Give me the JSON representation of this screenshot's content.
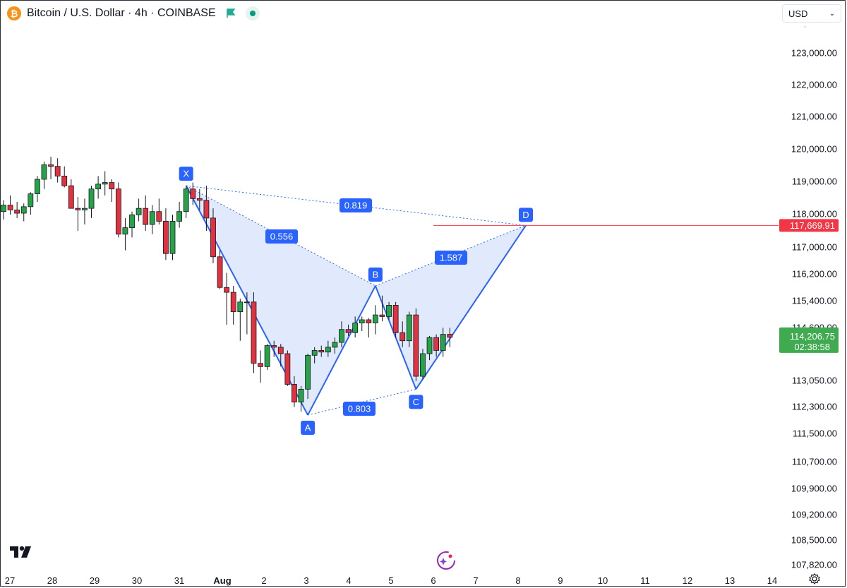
{
  "header": {
    "symbol_title": "Bitcoin / U.S. Dollar · 4h · COINBASE",
    "coin_icon": "bitcoin-icon",
    "flag_icon": "flag-icon",
    "status_icon": "market-open-dot-icon"
  },
  "currency_select": {
    "value": "USD"
  },
  "colors": {
    "up": "#26a247",
    "down": "#e0323f",
    "pattern_line": "#2962ff",
    "pattern_fill": "#dbe6fb",
    "label_bg": "#2962ff",
    "target_line": "#f23645",
    "last_price_bg": "#3faa4f"
  },
  "price_axis": {
    "labels": [
      "123,000.00",
      "122,000.00",
      "121,000.00",
      "120,000.00",
      "119,000.00",
      "118,000.00",
      "117,000.00",
      "116,200.00",
      "115,400.00",
      "114,600.00",
      "113,050.00",
      "112,300.00",
      "111,500.00",
      "110,700.00",
      "109,900.00",
      "109,200.00",
      "108,500.00",
      "107,820.00"
    ],
    "target_label": "117,669.91",
    "last_price": "114,206.75",
    "countdown": "02:38:58"
  },
  "time_axis": {
    "labels": [
      "27",
      "28",
      "29",
      "30",
      "31",
      "Aug",
      "2",
      "3",
      "4",
      "5",
      "6",
      "7",
      "8",
      "9",
      "10",
      "11",
      "12",
      "13",
      "14"
    ]
  },
  "chart_data": {
    "type": "candlestick",
    "title": "Bitcoin / U.S. Dollar · 4h · COINBASE",
    "y_scale": "price",
    "ylim": [
      107800,
      123500
    ],
    "candles": [
      {
        "o": 118100,
        "h": 118450,
        "l": 117850,
        "c": 118300
      },
      {
        "o": 118300,
        "h": 118600,
        "l": 118000,
        "c": 118150
      },
      {
        "o": 118150,
        "h": 118400,
        "l": 117900,
        "c": 118050
      },
      {
        "o": 118050,
        "h": 118350,
        "l": 117800,
        "c": 118250
      },
      {
        "o": 118250,
        "h": 118700,
        "l": 118000,
        "c": 118650
      },
      {
        "o": 118650,
        "h": 119200,
        "l": 118400,
        "c": 119100
      },
      {
        "o": 119100,
        "h": 119650,
        "l": 118800,
        "c": 119550
      },
      {
        "o": 119550,
        "h": 119800,
        "l": 119100,
        "c": 119500
      },
      {
        "o": 119500,
        "h": 119750,
        "l": 119000,
        "c": 119200
      },
      {
        "o": 119200,
        "h": 119500,
        "l": 118850,
        "c": 118900
      },
      {
        "o": 118900,
        "h": 119100,
        "l": 118300,
        "c": 118200
      },
      {
        "o": 118200,
        "h": 118550,
        "l": 117500,
        "c": 118150
      },
      {
        "o": 118150,
        "h": 118500,
        "l": 117700,
        "c": 118200
      },
      {
        "o": 118200,
        "h": 118900,
        "l": 117900,
        "c": 118800
      },
      {
        "o": 118800,
        "h": 119200,
        "l": 118500,
        "c": 118950
      },
      {
        "o": 118950,
        "h": 119350,
        "l": 118600,
        "c": 119000
      },
      {
        "o": 119000,
        "h": 119100,
        "l": 118400,
        "c": 118800
      },
      {
        "o": 118800,
        "h": 119000,
        "l": 117300,
        "c": 117400
      },
      {
        "o": 117400,
        "h": 117900,
        "l": 116900,
        "c": 117600
      },
      {
        "o": 117600,
        "h": 118100,
        "l": 117300,
        "c": 118000
      },
      {
        "o": 118000,
        "h": 118500,
        "l": 117800,
        "c": 118200
      },
      {
        "o": 118200,
        "h": 118600,
        "l": 117500,
        "c": 117700
      },
      {
        "o": 117700,
        "h": 118300,
        "l": 117400,
        "c": 118100
      },
      {
        "o": 118100,
        "h": 118500,
        "l": 117700,
        "c": 117800
      },
      {
        "o": 117800,
        "h": 118200,
        "l": 116600,
        "c": 116800
      },
      {
        "o": 116800,
        "h": 118000,
        "l": 116600,
        "c": 117800
      },
      {
        "o": 117800,
        "h": 118400,
        "l": 117600,
        "c": 118100
      },
      {
        "o": 118100,
        "h": 118900,
        "l": 117900,
        "c": 118800
      },
      {
        "o": 118800,
        "h": 119000,
        "l": 118300,
        "c": 118500
      },
      {
        "o": 118500,
        "h": 118800,
        "l": 118150,
        "c": 118450
      },
      {
        "o": 118450,
        "h": 118900,
        "l": 117500,
        "c": 117900
      },
      {
        "o": 117900,
        "h": 118200,
        "l": 116500,
        "c": 116700
      },
      {
        "o": 116700,
        "h": 116900,
        "l": 115700,
        "c": 115750
      },
      {
        "o": 115750,
        "h": 116200,
        "l": 114600,
        "c": 115600
      },
      {
        "o": 115600,
        "h": 115800,
        "l": 114600,
        "c": 115000
      },
      {
        "o": 115000,
        "h": 115400,
        "l": 114100,
        "c": 115300
      },
      {
        "o": 115300,
        "h": 115600,
        "l": 114300,
        "c": 115300
      },
      {
        "o": 115300,
        "h": 115600,
        "l": 113100,
        "c": 113400
      },
      {
        "o": 113400,
        "h": 113800,
        "l": 112800,
        "c": 113300
      },
      {
        "o": 113300,
        "h": 114000,
        "l": 113200,
        "c": 113950
      },
      {
        "o": 113950,
        "h": 114100,
        "l": 113600,
        "c": 113900
      },
      {
        "o": 113900,
        "h": 114000,
        "l": 113300,
        "c": 113700
      },
      {
        "o": 113700,
        "h": 113800,
        "l": 112700,
        "c": 112750
      },
      {
        "o": 112750,
        "h": 113000,
        "l": 112050,
        "c": 112200
      },
      {
        "o": 112200,
        "h": 112700,
        "l": 111900,
        "c": 112600
      },
      {
        "o": 112600,
        "h": 113700,
        "l": 112300,
        "c": 113650
      },
      {
        "o": 113650,
        "h": 113900,
        "l": 113400,
        "c": 113800
      },
      {
        "o": 113800,
        "h": 113950,
        "l": 113600,
        "c": 113750
      },
      {
        "o": 113750,
        "h": 114100,
        "l": 113600,
        "c": 113900
      },
      {
        "o": 113900,
        "h": 114200,
        "l": 113700,
        "c": 114050
      },
      {
        "o": 114050,
        "h": 114700,
        "l": 113900,
        "c": 114450
      },
      {
        "o": 114450,
        "h": 114600,
        "l": 114250,
        "c": 114350
      },
      {
        "o": 114350,
        "h": 114850,
        "l": 114200,
        "c": 114650
      },
      {
        "o": 114650,
        "h": 114850,
        "l": 114400,
        "c": 114750
      },
      {
        "o": 114750,
        "h": 114800,
        "l": 114200,
        "c": 114650
      },
      {
        "o": 114650,
        "h": 115200,
        "l": 114300,
        "c": 114900
      },
      {
        "o": 114900,
        "h": 115500,
        "l": 114700,
        "c": 114850
      },
      {
        "o": 114850,
        "h": 115300,
        "l": 114750,
        "c": 115200
      },
      {
        "o": 115200,
        "h": 115300,
        "l": 114200,
        "c": 114350
      },
      {
        "o": 114350,
        "h": 114700,
        "l": 113900,
        "c": 114100
      },
      {
        "o": 114100,
        "h": 115000,
        "l": 113900,
        "c": 114900
      },
      {
        "o": 114900,
        "h": 115100,
        "l": 112850,
        "c": 113000
      },
      {
        "o": 113000,
        "h": 113850,
        "l": 112900,
        "c": 113700
      },
      {
        "o": 113700,
        "h": 114250,
        "l": 113500,
        "c": 114200
      },
      {
        "o": 114200,
        "h": 114300,
        "l": 113600,
        "c": 113800
      },
      {
        "o": 113800,
        "h": 114500,
        "l": 113600,
        "c": 114300
      },
      {
        "o": 114300,
        "h": 114500,
        "l": 113900,
        "c": 114206.75
      }
    ],
    "harmonic_pattern": {
      "points": [
        {
          "label": "X",
          "price": 118900
        },
        {
          "label": "A",
          "price": 111800
        },
        {
          "label": "B",
          "price": 115800
        },
        {
          "label": "C",
          "price": 112600
        },
        {
          "label": "D",
          "price": 117669.91
        }
      ],
      "ratios": [
        {
          "label": "0.556",
          "between": "XB"
        },
        {
          "label": "0.819",
          "between": "XD"
        },
        {
          "label": "0.803",
          "between": "AC"
        },
        {
          "label": "1.587",
          "between": "BD"
        }
      ]
    },
    "target_price": 117669.91,
    "last_price": 114206.75
  }
}
